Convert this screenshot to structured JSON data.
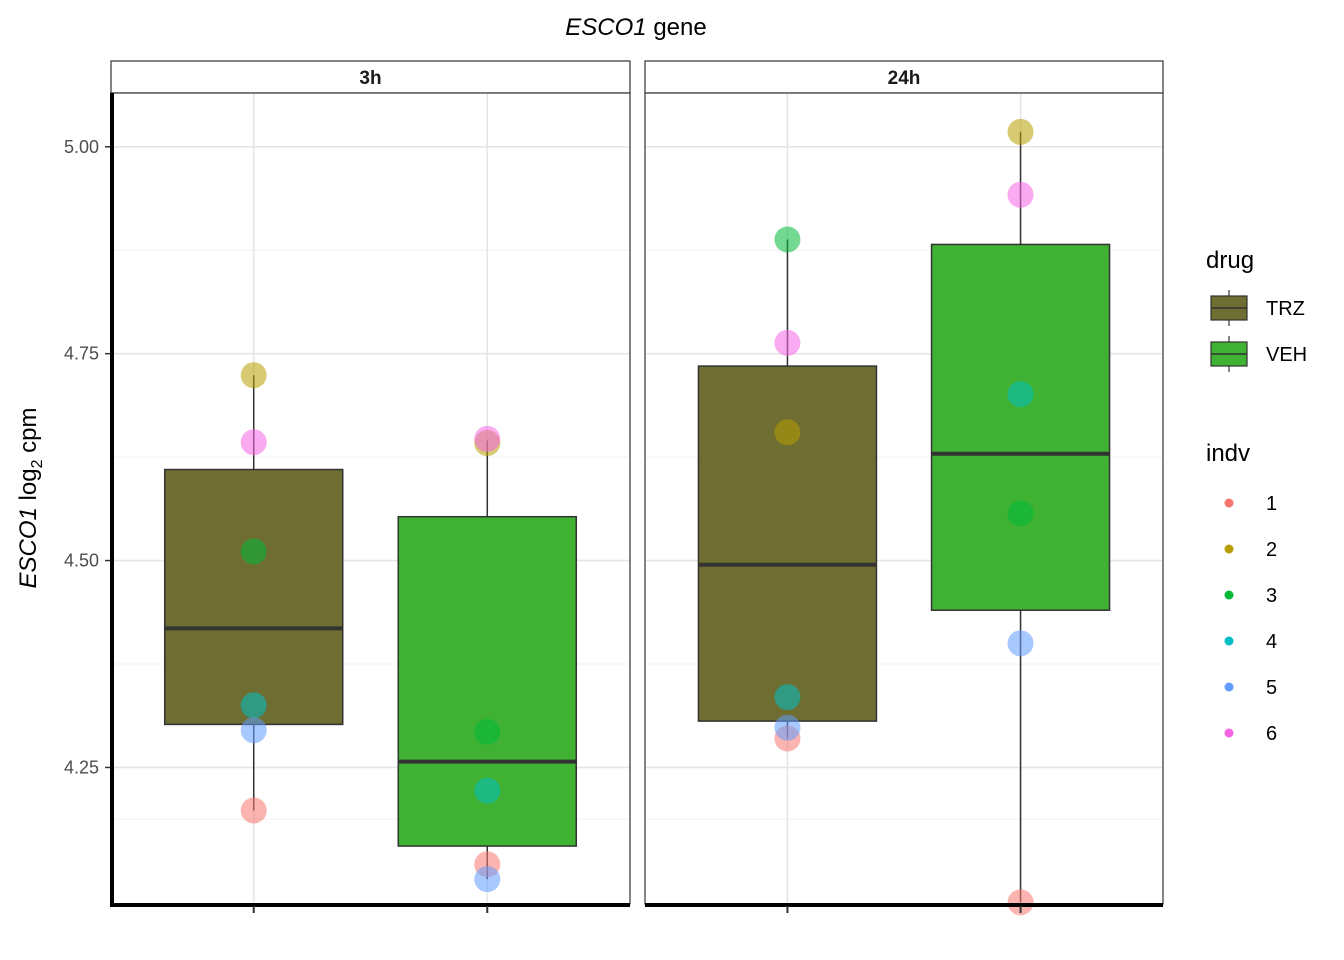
{
  "chart_data": {
    "type": "box",
    "title_italic": "ESCO1",
    "title_rest": " gene",
    "ylabel_italic": "ESCO1",
    "ylabel_log": " log",
    "ylabel_sub": "2",
    "ylabel_rest": " cpm",
    "ylim": [
      4.085,
      5.065
    ],
    "yticks": [
      4.25,
      4.5,
      4.75,
      5.0
    ],
    "ytick_labels": [
      "4.25",
      "4.50",
      "4.75",
      "5.00"
    ],
    "facets": [
      {
        "label": "3h",
        "boxes": [
          {
            "drug": "TRZ",
            "q1": 4.302,
            "median": 4.418,
            "q3": 4.61,
            "whisker_low": 4.198,
            "whisker_high": 4.724,
            "points": [
              {
                "indv": "1",
                "y": 4.198
              },
              {
                "indv": "2",
                "y": 4.724
              },
              {
                "indv": "3",
                "y": 4.511
              },
              {
                "indv": "4",
                "y": 4.325
              },
              {
                "indv": "5",
                "y": 4.295
              },
              {
                "indv": "6",
                "y": 4.643
              }
            ]
          },
          {
            "drug": "VEH",
            "q1": 4.155,
            "median": 4.257,
            "q3": 4.553,
            "whisker_low": 4.115,
            "whisker_high": 4.645,
            "points": [
              {
                "indv": "1",
                "y": 4.133
              },
              {
                "indv": "2",
                "y": 4.642
              },
              {
                "indv": "3",
                "y": 4.293
              },
              {
                "indv": "4",
                "y": 4.222
              },
              {
                "indv": "5",
                "y": 4.115
              },
              {
                "indv": "6",
                "y": 4.647
              }
            ]
          }
        ]
      },
      {
        "label": "24h",
        "boxes": [
          {
            "drug": "TRZ",
            "q1": 4.306,
            "median": 4.495,
            "q3": 4.735,
            "whisker_low": 4.285,
            "whisker_high": 4.888,
            "points": [
              {
                "indv": "1",
                "y": 4.285
              },
              {
                "indv": "2",
                "y": 4.655
              },
              {
                "indv": "3",
                "y": 4.888
              },
              {
                "indv": "4",
                "y": 4.335
              },
              {
                "indv": "5",
                "y": 4.298
              },
              {
                "indv": "6",
                "y": 4.763
              }
            ]
          },
          {
            "drug": "VEH",
            "q1": 4.44,
            "median": 4.629,
            "q3": 4.882,
            "whisker_low": 4.087,
            "whisker_high": 5.018,
            "points": [
              {
                "indv": "1",
                "y": 4.087
              },
              {
                "indv": "2",
                "y": 5.018
              },
              {
                "indv": "3",
                "y": 4.557
              },
              {
                "indv": "4",
                "y": 4.701
              },
              {
                "indv": "5",
                "y": 4.4
              },
              {
                "indv": "6",
                "y": 4.942
              }
            ]
          }
        ]
      }
    ],
    "legend_drug": {
      "title": "drug",
      "items": [
        {
          "label": "TRZ",
          "color": "#6e6e32"
        },
        {
          "label": "VEH",
          "color": "#3fb233"
        }
      ]
    },
    "legend_indv": {
      "title": "indv",
      "items": [
        {
          "label": "1",
          "color": "#F8766D"
        },
        {
          "label": "2",
          "color": "#B79F00"
        },
        {
          "label": "3",
          "color": "#00BA38"
        },
        {
          "label": "4",
          "color": "#00BFC4"
        },
        {
          "label": "5",
          "color": "#619CFF"
        },
        {
          "label": "6",
          "color": "#F564E3"
        }
      ]
    },
    "grid": true,
    "legend_position": "right"
  }
}
